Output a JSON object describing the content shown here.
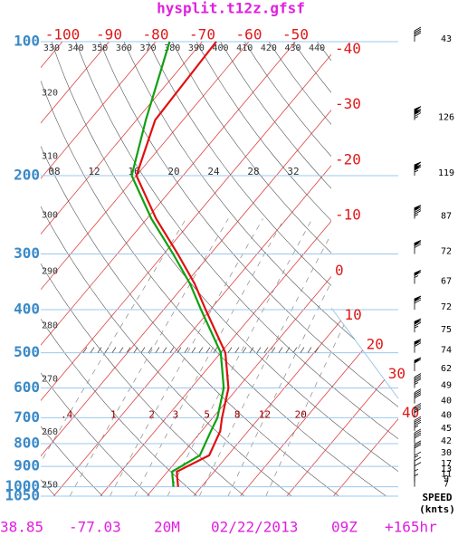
{
  "chart_data": {
    "type": "skewt",
    "title": "hysplit.t12z.gfsf",
    "log_y": true,
    "ylim": [
      100,
      1050
    ],
    "yticks": [
      100,
      200,
      300,
      400,
      500,
      600,
      700,
      800,
      900,
      1000,
      1050
    ],
    "xticks": [
      -100,
      -90,
      -80,
      -70,
      -60,
      -50,
      -40,
      -30,
      -20,
      -10,
      0,
      10,
      20,
      30,
      40
    ],
    "pressure": [
      100,
      150,
      200,
      250,
      300,
      350,
      400,
      500,
      600,
      700,
      750,
      850,
      925,
      950,
      1000
    ],
    "series": [
      {
        "color": "#e01010",
        "values": [
          -67,
          -66,
          -60,
          -48,
          -37,
          -28,
          -21,
          -9,
          -2,
          2,
          4,
          6,
          2,
          3,
          5
        ]
      },
      {
        "color": "#10a010",
        "values": [
          -77,
          -68,
          -61,
          -49,
          -38,
          -29,
          -22,
          -10,
          -3,
          1,
          2,
          4,
          1,
          2,
          4
        ]
      }
    ],
    "dry_adiabats": [
      250,
      260,
      270,
      280,
      290,
      300,
      310,
      320,
      330,
      340,
      350,
      360,
      370,
      380,
      390,
      400,
      410,
      420,
      430,
      440
    ],
    "moist_adiabat_labels": [
      "08",
      "12",
      "16",
      "20",
      "24",
      "28",
      "32"
    ],
    "mixing_ratios": [
      {
        "value": 0.4,
        "label": ".4"
      },
      1,
      2,
      3,
      5,
      8,
      12,
      20
    ],
    "wind": {
      "title": "SPEED",
      "unit": "(knts)",
      "pressure": [
        100,
        150,
        200,
        250,
        300,
        350,
        400,
        450,
        500,
        550,
        600,
        650,
        700,
        750,
        800,
        850,
        900,
        925,
        950,
        975,
        1000
      ],
      "speeds": [
        43,
        126,
        119,
        87,
        72,
        67,
        72,
        75,
        74,
        62,
        49,
        40,
        40,
        45,
        42,
        30,
        17,
        13,
        11,
        9,
        7
      ]
    },
    "footer": [
      "38.85",
      "-77.03",
      "20M",
      "02/22/2013",
      "09Z",
      "+165hr"
    ]
  }
}
